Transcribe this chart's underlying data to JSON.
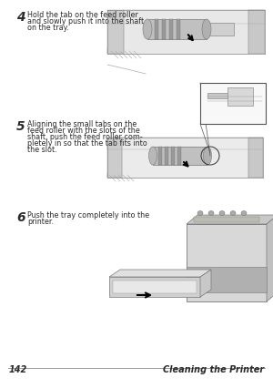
{
  "bg_color": "#ffffff",
  "page_width": 3.0,
  "page_height": 4.27,
  "text_color": "#2a2a2a",
  "footer_page_num": "142",
  "footer_title": "Cleaning the Printer",
  "step4_num": "4",
  "step4_text_line1": "Hold the tab on the feed roller",
  "step4_text_line2": "and slowly push it into the shaft",
  "step4_text_line3": "on the tray.",
  "step5_num": "5",
  "step5_text_line1": "Aligning the small tabs on the",
  "step5_text_line2": "feed roller with the slots of the",
  "step5_text_line3": "shaft, push the feed roller com-",
  "step5_text_line4": "pletely in so that the tab fits into",
  "step5_text_line5": "the slot.",
  "step6_num": "6",
  "step6_text_line1": "Push the tray completely into the",
  "step6_text_line2": "printer.",
  "step_num_fontsize": 10,
  "step_text_fontsize": 5.8,
  "footer_fontsize": 7.0,
  "gray_light": "#e8e8e8",
  "gray_mid": "#aaaaaa",
  "gray_dark": "#666666"
}
